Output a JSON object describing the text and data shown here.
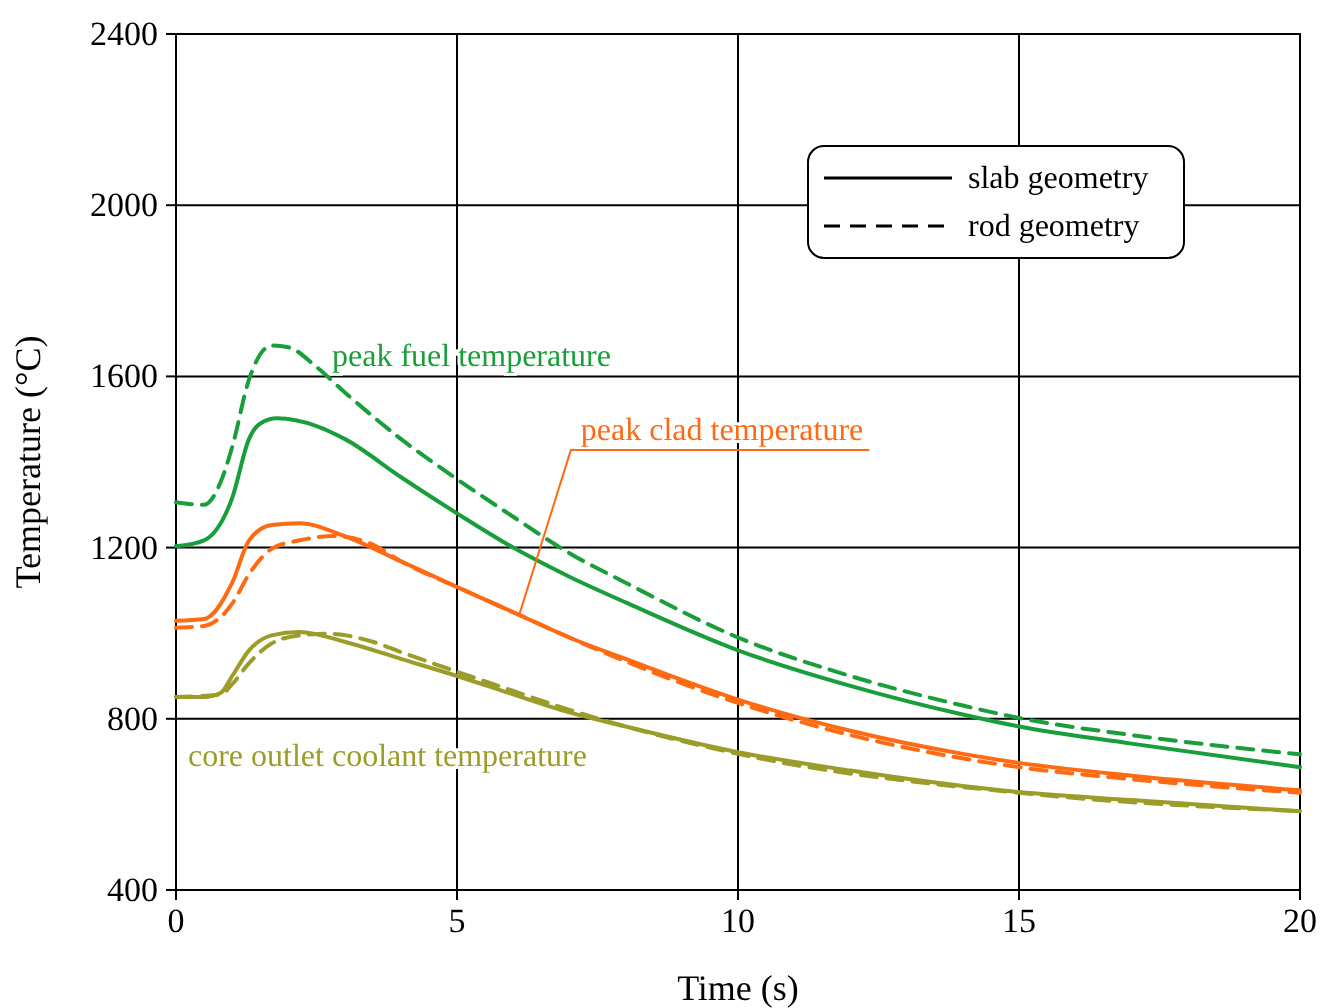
{
  "chart_data": {
    "type": "line",
    "xlabel": "Time (s)",
    "ylabel": "Temperature (°C)",
    "xlim": [
      0,
      20
    ],
    "ylim": [
      400,
      2400
    ],
    "xticks": [
      0,
      5,
      10,
      15,
      20
    ],
    "yticks": [
      400,
      800,
      1200,
      1600,
      2000,
      2400
    ],
    "grid": true,
    "marker": "none",
    "series": [
      {
        "color": "#1a9e3c",
        "line_style": "solid",
        "x": [
          0,
          0.5,
          1,
          1.3,
          1.5,
          1.8,
          2.5,
          3,
          4,
          5,
          6,
          7,
          8,
          10,
          12,
          14,
          15,
          17,
          20
        ],
        "values": [
          1203,
          1217,
          1316,
          1454,
          1490,
          1502,
          1484,
          1454,
          1365,
          1280,
          1200,
          1132,
          1072,
          960,
          877,
          810,
          782,
          742,
          687
        ]
      },
      {
        "color": "#1a9e3c",
        "line_style": "dashed",
        "x": [
          0,
          0.5,
          0.8,
          1,
          1.3,
          1.7,
          2,
          2.5,
          3,
          4,
          5,
          6,
          7,
          8,
          10,
          12,
          14,
          15,
          17,
          20
        ],
        "values": [
          1306,
          1300,
          1355,
          1435,
          1593,
          1672,
          1668,
          1622,
          1563,
          1454,
          1360,
          1272,
          1187,
          1118,
          990,
          900,
          831,
          802,
          762,
          717
        ]
      },
      {
        "color": "#ff6a13",
        "line_style": "solid",
        "x": [
          0,
          0.5,
          1,
          1.3,
          1.7,
          2.2,
          3,
          4,
          5,
          6,
          7,
          8,
          10,
          12,
          14,
          15,
          17,
          20
        ],
        "values": [
          1029,
          1033,
          1118,
          1217,
          1253,
          1257,
          1227,
          1168,
          1108,
          1049,
          990,
          940,
          845,
          772,
          718,
          697,
          667,
          633
        ]
      },
      {
        "color": "#ff6a13",
        "line_style": "dashed",
        "x": [
          0,
          0.5,
          1,
          1.3,
          1.7,
          2.2,
          2.8,
          3.5,
          4,
          5,
          6,
          7,
          8,
          10,
          12,
          15,
          17,
          20
        ],
        "values": [
          1013,
          1017,
          1069,
          1138,
          1197,
          1217,
          1227,
          1207,
          1168,
          1108,
          1049,
          990,
          934,
          837,
          762,
          687,
          659,
          627
        ]
      },
      {
        "color": "#9c9c2a",
        "line_style": "solid",
        "x": [
          0,
          0.5,
          0.8,
          1,
          1.3,
          1.7,
          2.2,
          3,
          4,
          5,
          6,
          7,
          8,
          10,
          12,
          14,
          15,
          17,
          20
        ],
        "values": [
          851,
          851,
          861,
          900,
          960,
          995,
          1003,
          980,
          940,
          900,
          857,
          815,
          782,
          722,
          679,
          643,
          629,
          610,
          584
        ]
      },
      {
        "color": "#9c9c2a",
        "line_style": "dashed",
        "x": [
          0,
          0.8,
          1,
          1.3,
          1.7,
          2.2,
          2.7,
          3.5,
          4,
          5,
          6,
          7,
          10,
          15,
          20
        ],
        "values": [
          851,
          857,
          881,
          930,
          976,
          995,
          999,
          980,
          956,
          910,
          865,
          821,
          718,
          627,
          584
        ]
      }
    ],
    "annotations": [
      "peak fuel temperature",
      {
        "text": "peak clad temperature",
        "x": 6.1,
        "y": 1040
      },
      "core outlet coolant temperature",
      "slab geometry",
      "rod geometry"
    ]
  }
}
